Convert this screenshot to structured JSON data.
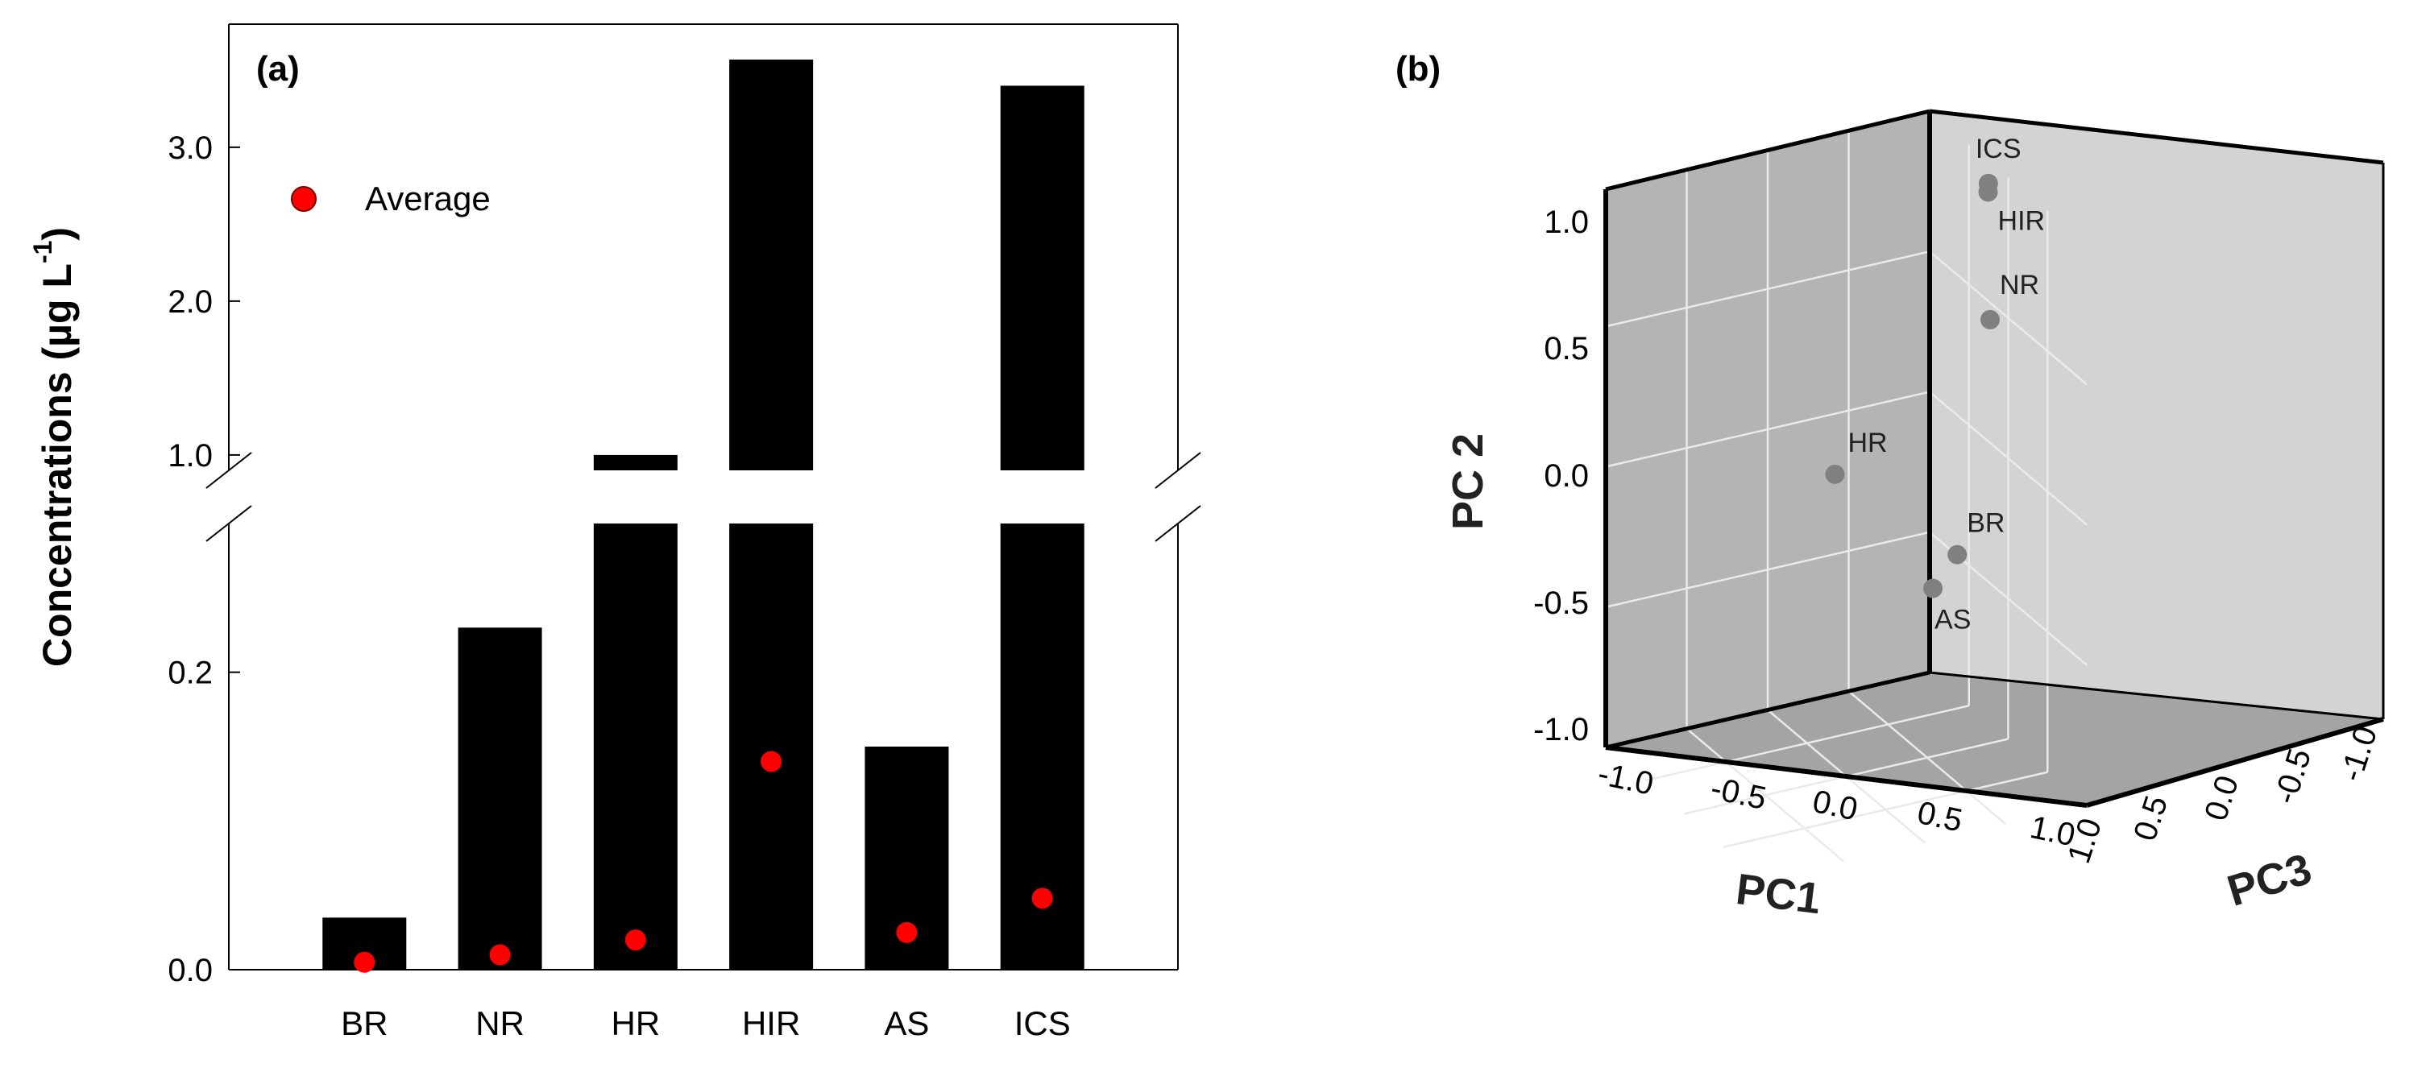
{
  "colors": {
    "bar": "#000000",
    "average_marker": "#ff0000",
    "pca_point": "#808080",
    "cube_back": "#d3d3d3",
    "cube_left": "#b4b4b4",
    "cube_floor": "#a4a4a4"
  },
  "chart_data": [
    {
      "type": "bar",
      "panel_label": "(a)",
      "categories": [
        "BR",
        "NR",
        "HR",
        "HIR",
        "AS",
        "ICS"
      ],
      "series": [
        {
          "values": [
            0.035,
            0.23,
            1.0,
            3.57,
            0.15,
            3.4
          ]
        },
        {
          "name": "Average",
          "marker": "circle",
          "values": [
            0.005,
            0.01,
            0.02,
            0.14,
            0.025,
            0.048
          ]
        }
      ],
      "ylabel": "Concentrations (µg L",
      "ylabel_superscript": "-1",
      "ylabel_close": ")",
      "y_axis_break": true,
      "lower_segment": {
        "ylim": [
          0,
          0.3
        ],
        "ticks": [
          0.0,
          0.2
        ],
        "tick_labels": [
          "0.0",
          "0.2"
        ]
      },
      "upper_segment": {
        "ylim": [
          0.9,
          3.8
        ],
        "ticks": [
          1.0,
          2.0,
          3.0
        ],
        "tick_labels": [
          "1.0",
          "2.0",
          "3.0"
        ]
      },
      "legend": {
        "placement": "top-left",
        "entries": [
          "Average"
        ]
      },
      "grid": false
    },
    {
      "type": "scatter",
      "panel_label": "(b)",
      "projection": "3d",
      "xlabel": "PC1",
      "ylabel": "PC 2",
      "zlabel": "PC3",
      "xlim": [
        -1.0,
        1.0
      ],
      "ylim": [
        -1.0,
        1.0
      ],
      "zlim": [
        -1.0,
        1.0
      ],
      "x_tick_labels": [
        "-1.0",
        "-0.5",
        "0.0",
        "0.5",
        "1.0"
      ],
      "y_tick_labels": [
        "1.0",
        "0.5",
        "0.0",
        "-0.5",
        "-1.0"
      ],
      "z_tick_labels": [
        "1.0",
        "0.5",
        "0.0",
        "-0.5",
        "-1.0"
      ],
      "grid": true,
      "points": [
        {
          "label": "ICS",
          "x": -0.15,
          "y": 0.95,
          "z": -0.95
        },
        {
          "label": "HIR",
          "x": -0.05,
          "y": 0.95,
          "z": -0.9
        },
        {
          "label": "NR",
          "x": 0.8,
          "y": 0.75,
          "z": -0.5
        },
        {
          "label": "HR",
          "x": -0.35,
          "y": -0.02,
          "z": -0.1
        },
        {
          "label": "BR",
          "x": 1.0,
          "y": 0.0,
          "z": -0.2
        },
        {
          "label": "AS",
          "x": 1.0,
          "y": -0.1,
          "z": -0.05
        }
      ]
    }
  ]
}
